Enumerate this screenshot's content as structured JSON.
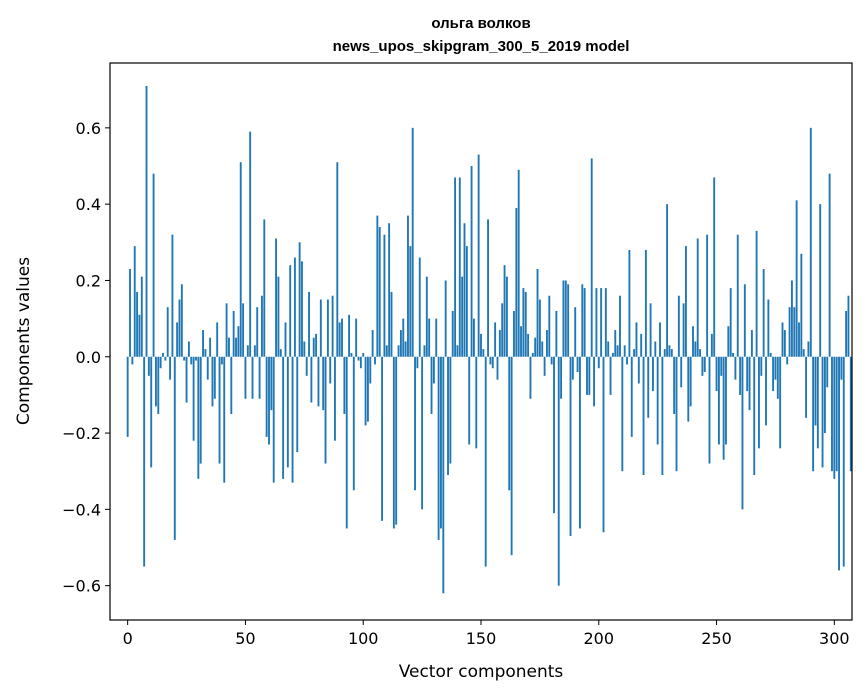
{
  "chart_data": {
    "type": "bar",
    "title_line1": "ольга волков",
    "title_line2": "news_upos_skipgram_300_5_2019 model",
    "xlabel": "Vector components",
    "ylabel": "Components values",
    "xlim": [
      -7.5,
      307.5
    ],
    "ylim": [
      -0.69,
      0.77
    ],
    "xticks": [
      0,
      50,
      100,
      150,
      200,
      250,
      300
    ],
    "yticks": [
      -0.6,
      -0.4,
      -0.2,
      0.0,
      0.2,
      0.4,
      0.6
    ],
    "ytick_labels": [
      "−0.6",
      "−0.4",
      "−0.2",
      "0.0",
      "0.2",
      "0.4",
      "0.6"
    ],
    "grid": false,
    "bar_color": "#1f77b4",
    "values": [
      -0.21,
      0.23,
      -0.02,
      0.29,
      0.17,
      0.11,
      0.21,
      -0.55,
      0.71,
      -0.05,
      -0.29,
      0.48,
      -0.13,
      -0.15,
      -0.03,
      0.01,
      -0.01,
      0.13,
      -0.06,
      0.32,
      -0.48,
      0.09,
      0.15,
      0.19,
      -0.01,
      -0.12,
      0.04,
      -0.02,
      -0.22,
      -0.01,
      -0.32,
      -0.28,
      0.07,
      0.02,
      -0.06,
      0.05,
      -0.13,
      -0.11,
      0.09,
      -0.28,
      -0.02,
      -0.33,
      0.14,
      0.05,
      -0.15,
      0.12,
      0.05,
      0.08,
      0.51,
      0.14,
      -0.11,
      0.03,
      0.59,
      -0.11,
      0.03,
      0.13,
      -0.11,
      0.16,
      0.36,
      -0.21,
      -0.23,
      -0.14,
      -0.33,
      0.31,
      0.21,
      0.02,
      -0.32,
      0.09,
      -0.29,
      0.24,
      -0.33,
      0.26,
      -0.25,
      0.3,
      0.25,
      0.04,
      -0.05,
      0.17,
      -0.12,
      0.05,
      0.06,
      -0.13,
      0.15,
      -0.14,
      -0.28,
      0.15,
      -0.07,
      0.16,
      -0.22,
      0.51,
      0.09,
      0.1,
      -0.15,
      -0.45,
      0.11,
      0.01,
      -0.35,
      0.1,
      -0.01,
      -0.03,
      0.01,
      -0.18,
      -0.17,
      -0.07,
      0.07,
      -0.02,
      0.37,
      0.34,
      -0.43,
      0.32,
      0.03,
      0.35,
      0.17,
      -0.45,
      -0.44,
      0.03,
      0.07,
      0.1,
      0.04,
      0.37,
      0.29,
      0.6,
      -0.35,
      -0.03,
      0.26,
      -0.4,
      0.03,
      0.21,
      0.1,
      -0.15,
      -0.07,
      0.1,
      -0.48,
      -0.45,
      -0.62,
      0.2,
      -0.31,
      -0.28,
      0.12,
      0.47,
      0.03,
      0.47,
      0.21,
      0.35,
      0.29,
      -0.23,
      0.5,
      0.1,
      -0.24,
      0.53,
      0.06,
      0.02,
      -0.55,
      0.36,
      -0.02,
      -0.03,
      0.09,
      -0.06,
      0.07,
      0.14,
      0.24,
      0.21,
      -0.35,
      -0.52,
      0.12,
      0.39,
      0.49,
      0.08,
      0.18,
      0.17,
      0.06,
      -0.11,
      0.01,
      0.05,
      0.23,
      0.15,
      0.04,
      -0.05,
      0.07,
      0.16,
      -0.02,
      -0.41,
      0.12,
      -0.6,
      -0.11,
      0.2,
      0.2,
      0.19,
      -0.47,
      -0.06,
      0.13,
      -0.04,
      -0.45,
      0.19,
      0.18,
      -0.1,
      -0.1,
      0.52,
      -0.13,
      0.18,
      -0.03,
      0.18,
      -0.46,
      0.18,
      0.04,
      -0.1,
      0.01,
      0.07,
      0.03,
      0.16,
      -0.3,
      0.03,
      -0.02,
      0.28,
      -0.21,
      0.02,
      0.09,
      -0.07,
      0.06,
      -0.31,
      0.28,
      -0.16,
      0.14,
      -0.09,
      0.04,
      -0.23,
      0.09,
      -0.31,
      0.02,
      0.4,
      0.03,
      0.02,
      -0.15,
      -0.3,
      0.16,
      -0.08,
      0.14,
      0.29,
      -0.17,
      -0.13,
      0.08,
      0.04,
      0.31,
      0.02,
      -0.05,
      -0.04,
      0.32,
      -0.28,
      0.06,
      0.47,
      -0.09,
      -0.23,
      -0.05,
      -0.27,
      -0.23,
      0.08,
      0.18,
      0.01,
      -0.06,
      0.32,
      -0.1,
      -0.4,
      0.19,
      -0.09,
      -0.14,
      0.07,
      -0.31,
      0.33,
      -0.24,
      -0.05,
      0.23,
      -0.18,
      0.15,
      0.01,
      -0.09,
      -0.06,
      -0.11,
      -0.24,
      0.09,
      0.07,
      -0.02,
      0.13,
      0.2,
      0.13,
      0.41,
      0.09,
      0.27,
      0.02,
      -0.16,
      0.04,
      0.6,
      -0.3,
      -0.18,
      -0.24,
      0.4,
      -0.29,
      -0.2,
      -0.08,
      0.48,
      -0.3,
      -0.32,
      -0.3,
      -0.56,
      -0.06,
      -0.55,
      0.12,
      0.16,
      -0.3
    ]
  }
}
